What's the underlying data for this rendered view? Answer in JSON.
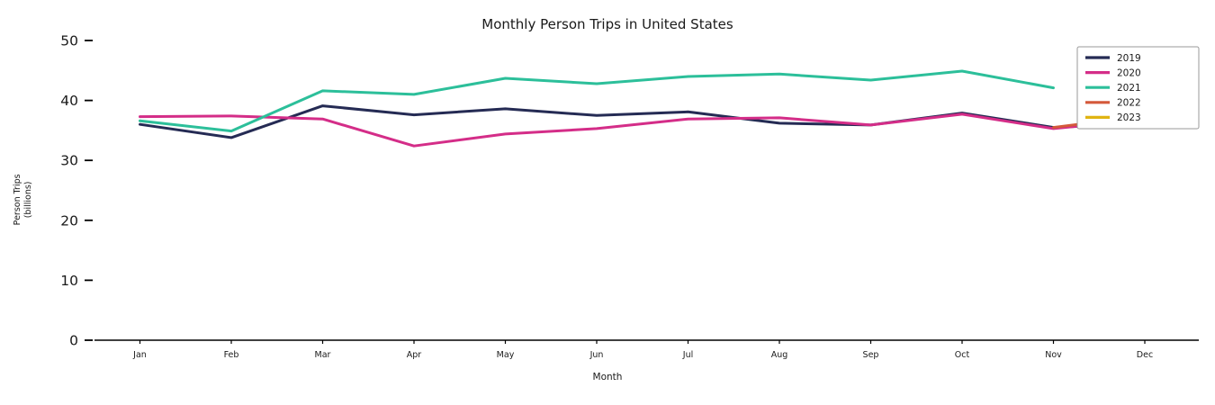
{
  "chart_data": {
    "type": "line",
    "title": "Monthly Person Trips in United States",
    "xlabel": "Month",
    "ylabel": "Person Trips (billions)",
    "ylabel_lines": [
      "Person Trips",
      "(billions)"
    ],
    "x": [
      "Jan",
      "Feb",
      "Mar",
      "Apr",
      "May",
      "Jun",
      "Jul",
      "Aug",
      "Sep",
      "Oct",
      "Nov",
      "Dec"
    ],
    "ylim": [
      0,
      50
    ],
    "yticks": [
      0,
      10,
      20,
      30,
      40,
      50
    ],
    "grid": false,
    "legend_position": "upper right",
    "series": [
      {
        "name": "2019",
        "color": "#252b54",
        "values": [
          36.0,
          33.8,
          39.1,
          37.6,
          38.6,
          37.5,
          38.1,
          36.2,
          35.9,
          37.9,
          35.5,
          36.2
        ]
      },
      {
        "name": "2020",
        "color": "#d42d88",
        "values": [
          37.3,
          37.4,
          36.9,
          32.4,
          34.4,
          35.3,
          36.9,
          37.1,
          35.9,
          37.7,
          35.3,
          36.8
        ]
      },
      {
        "name": "2021",
        "color": "#2cbf9a",
        "values": [
          36.6,
          34.9,
          41.6,
          41.0,
          43.7,
          42.8,
          44.0,
          44.4,
          43.4,
          44.9,
          42.1,
          null
        ]
      },
      {
        "name": "2022",
        "color": "#d4593a",
        "values": [
          null,
          null,
          null,
          null,
          null,
          null,
          null,
          null,
          null,
          null,
          35.5,
          37.4
        ]
      },
      {
        "name": "2023",
        "color": "#e0b412",
        "values": [
          null,
          null,
          null,
          null,
          null,
          null,
          null,
          null,
          null,
          null,
          null,
          null
        ]
      }
    ],
    "axis_color": "#000000",
    "tick_label_color": "#1a1a1a"
  }
}
